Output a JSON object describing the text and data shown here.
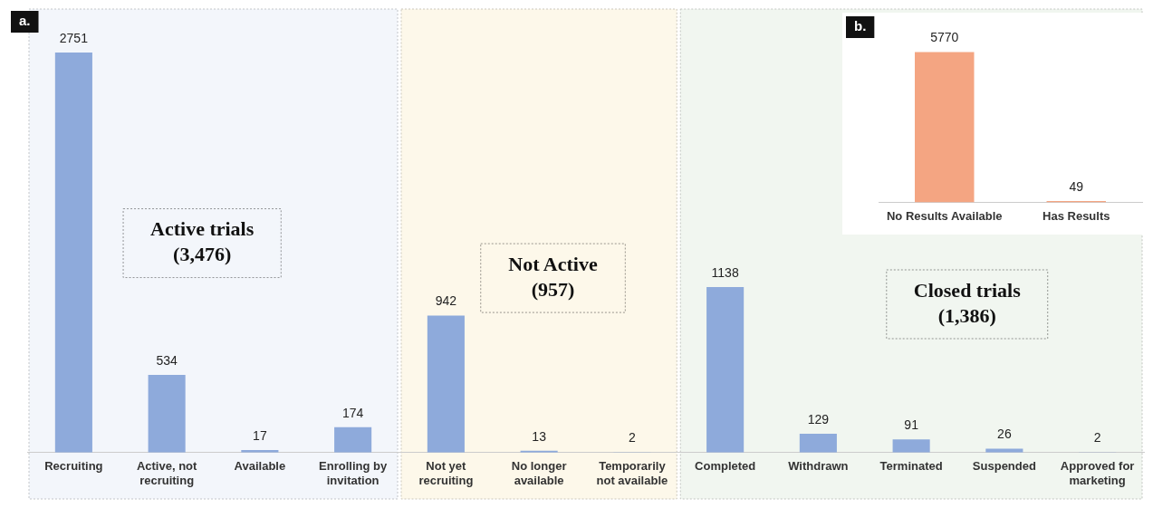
{
  "chart_data": [
    {
      "type": "bar",
      "categories": [
        "Recruiting",
        "Active, not recruiting",
        "Available",
        "Enrolling by invitation",
        "Not yet recruiting",
        "No longer available",
        "Temporarily not available",
        "Completed",
        "Withdrawn",
        "Terminated",
        "Suspended",
        "Approved for marketing"
      ],
      "values": [
        2751,
        534,
        17,
        174,
        942,
        13,
        2,
        1138,
        129,
        91,
        26,
        2
      ],
      "color": "#8eaadb",
      "data_labels": true,
      "grid": false,
      "legend": false,
      "tick_labels": "x",
      "bands": [
        {
          "axis": "x",
          "from": "Recruiting",
          "to": "Enrolling by invitation",
          "label": "Active trials\n(3,476)",
          "color": "#f3f6fb"
        },
        {
          "axis": "x",
          "from": "Not yet recruiting",
          "to": "Temporarily not available",
          "label": "Not Active\n(957)",
          "color": "#fdf8ea"
        },
        {
          "axis": "x",
          "from": "Completed",
          "to": "Approved for marketing",
          "label": "Closed trials\n(1,386)",
          "color": "#f1f6f0"
        }
      ],
      "annotations": [
        "a."
      ]
    },
    {
      "type": "bar",
      "categories": [
        "No Results Available",
        "Has Results"
      ],
      "values": [
        5770,
        49
      ],
      "color": "#f4a582",
      "data_labels": true,
      "grid": false,
      "legend": false,
      "tick_labels": "x",
      "annotations": [
        "b."
      ]
    }
  ]
}
